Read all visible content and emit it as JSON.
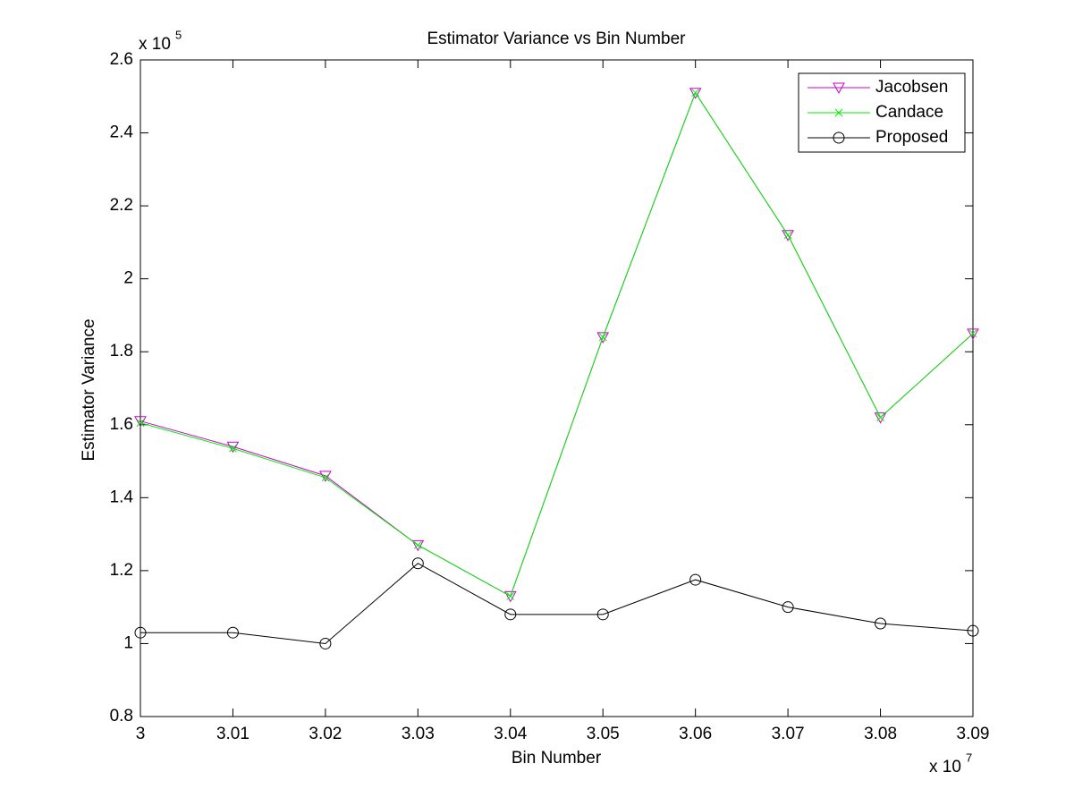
{
  "chart_data": {
    "type": "line",
    "title": "Estimator Variance vs Bin Number",
    "xlabel": "Bin Number",
    "ylabel": "Estimator Variance",
    "x_multiplier": "x 10",
    "x_exponent": "7",
    "y_multiplier": "x 10",
    "y_exponent": "5",
    "x": [
      3,
      3.01,
      3.02,
      3.03,
      3.04,
      3.05,
      3.06,
      3.07,
      3.08,
      3.09
    ],
    "xlim": [
      3,
      3.09
    ],
    "xticks": [
      3,
      3.01,
      3.02,
      3.03,
      3.04,
      3.05,
      3.06,
      3.07,
      3.08,
      3.09
    ],
    "ylim": [
      0.8,
      2.6
    ],
    "yticks": [
      0.8,
      1,
      1.2,
      1.4,
      1.6,
      1.8,
      2,
      2.2,
      2.4,
      2.6
    ],
    "grid": false,
    "legend_position": "upper-right",
    "series": [
      {
        "name": "Jacobsen",
        "color": "#cc00cc",
        "marker": "triangle-down",
        "values": [
          1.61,
          1.54,
          1.46,
          1.27,
          1.13,
          1.84,
          2.51,
          2.12,
          1.62,
          1.85
        ]
      },
      {
        "name": "Candace",
        "color": "#00ee00",
        "marker": "x",
        "values": [
          1.605,
          1.535,
          1.455,
          1.27,
          1.13,
          1.84,
          2.51,
          2.12,
          1.62,
          1.85
        ]
      },
      {
        "name": "Proposed",
        "color": "#000000",
        "marker": "circle",
        "values": [
          1.03,
          1.03,
          1.0,
          1.22,
          1.08,
          1.08,
          1.175,
          1.1,
          1.055,
          1.035
        ]
      }
    ]
  }
}
